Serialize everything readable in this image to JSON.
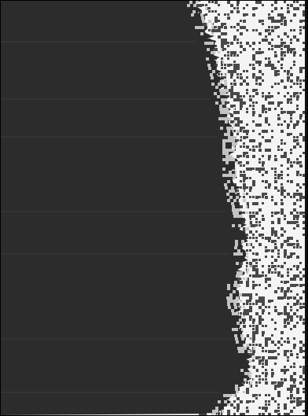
{
  "image": {
    "description_tags": [
      "dark-region",
      "speckled-region",
      "noisy-edge"
    ],
    "colors": {
      "dark": "#2c2c2c",
      "dark_line": "#3a3a3a",
      "light": "#f4f4f4",
      "speck": "#2a2a2a",
      "border": "#000000"
    },
    "speck_density": 0.33,
    "edge_profile": [
      [
        0.0,
        0.64
      ],
      [
        0.06,
        0.67
      ],
      [
        0.12,
        0.7
      ],
      [
        0.18,
        0.72
      ],
      [
        0.26,
        0.74
      ],
      [
        0.34,
        0.76
      ],
      [
        0.42,
        0.76
      ],
      [
        0.5,
        0.78
      ],
      [
        0.58,
        0.8
      ],
      [
        0.64,
        0.79
      ],
      [
        0.7,
        0.77
      ],
      [
        0.76,
        0.78
      ],
      [
        0.84,
        0.81
      ],
      [
        0.9,
        0.82
      ],
      [
        0.95,
        0.76
      ],
      [
        1.0,
        0.7
      ]
    ]
  }
}
